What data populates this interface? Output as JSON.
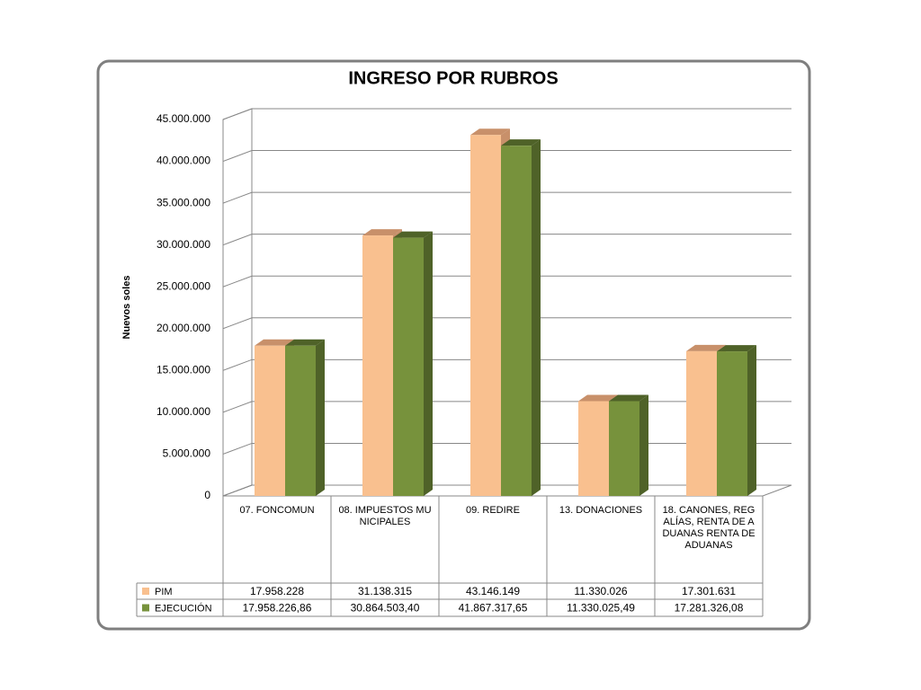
{
  "chart_data": {
    "type": "bar3d",
    "title": "INGRESO POR RUBROS",
    "y_label": "Nuevos soles",
    "categories": [
      "07. FONCOMUN",
      "08. IMPUESTOS MUNICIPALES",
      "09. REDIRE",
      "13. DONACIONES",
      "18. CANONES, REGALÍAS, RENTA DE ADUANAS RENTA DE ADUANAS"
    ],
    "series": [
      {
        "name": "PIM",
        "color": "#F9C08F",
        "side_color": "#C8906A",
        "values": [
          17958228,
          31138315,
          43146149,
          11330026,
          17301631
        ],
        "value_labels": [
          "17.958.228",
          "31.138.315",
          "43.146.149",
          "11.330.026",
          "17.301.631"
        ]
      },
      {
        "name": "EJECUCIÓN",
        "color": "#77923C",
        "side_color": "#4F6228",
        "values": [
          17958226.86,
          30864503.4,
          41867317.65,
          11330025.49,
          17281326.08
        ],
        "value_labels": [
          "17.958.226,86",
          "30.864.503,40",
          "41.867.317,65",
          "11.330.025,49",
          "17.281.326,08"
        ]
      }
    ],
    "ylim": [
      0,
      45000000
    ],
    "yticks": [
      0,
      {
        "value": 5000000,
        "label": "5.000.000"
      },
      {
        "value": 10000000,
        "label": "10.000.000"
      },
      {
        "value": 15000000,
        "label": "15.000.000"
      },
      {
        "value": 20000000,
        "label": "20.000.000"
      },
      {
        "value": 25000000,
        "label": "25.000.000"
      },
      {
        "value": 30000000,
        "label": "30.000.000"
      },
      {
        "value": 35000000,
        "label": "35.000.000"
      },
      {
        "value": 40000000,
        "label": "40.000.000"
      },
      {
        "value": 45000000,
        "label": "45.000.000"
      }
    ],
    "grid": true
  }
}
